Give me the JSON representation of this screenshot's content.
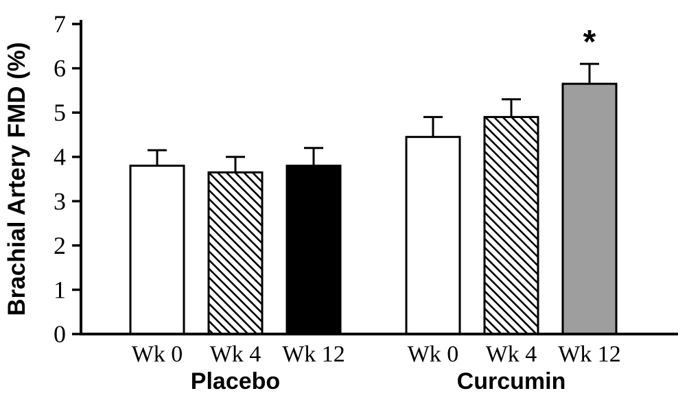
{
  "figure": {
    "background": "#ffffff"
  },
  "chart_data": {
    "type": "bar",
    "title": "",
    "xlabel": "",
    "ylabel": "Brachial Artery FMD (%)",
    "ylim": [
      0,
      7
    ],
    "yticks": [
      0,
      1,
      2,
      3,
      4,
      5,
      6,
      7
    ],
    "grid": false,
    "legend": "none",
    "error_bars": "upper-only",
    "groups": [
      {
        "label": "Placebo",
        "categories": [
          "Wk 0",
          "Wk 4",
          "Wk 12"
        ],
        "values": [
          3.8,
          3.65,
          3.8
        ],
        "errors": [
          0.35,
          0.35,
          0.4
        ],
        "styles": [
          "white",
          "hatch",
          "black"
        ]
      },
      {
        "label": "Curcumin",
        "categories": [
          "Wk 0",
          "Wk 4",
          "Wk 12"
        ],
        "values": [
          4.45,
          4.9,
          5.65
        ],
        "errors": [
          0.45,
          0.4,
          0.45
        ],
        "styles": [
          "white",
          "hatch",
          "gray"
        ]
      }
    ],
    "annotations": [
      {
        "text": "*",
        "group": 1,
        "bar": 2
      }
    ],
    "colors": {
      "white": "#ffffff",
      "black": "#000000",
      "gray": "#9e9e9e",
      "stroke": "#000000"
    }
  }
}
